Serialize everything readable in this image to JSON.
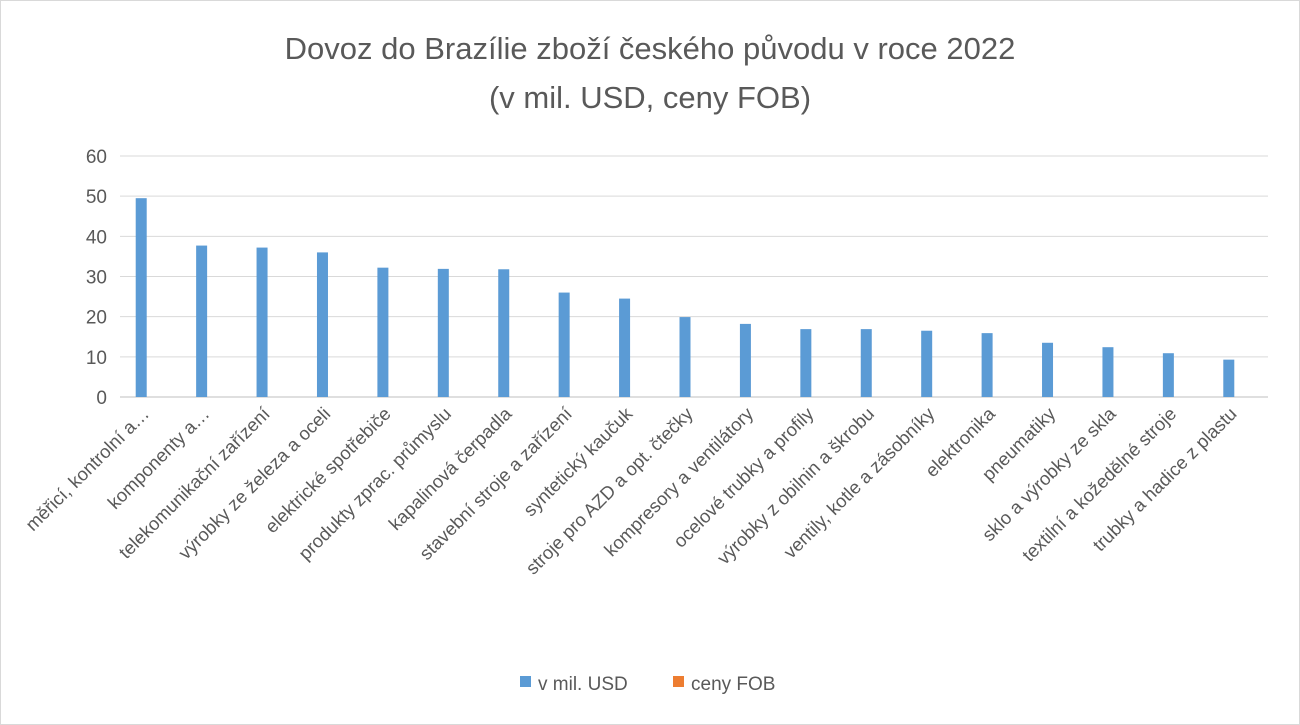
{
  "chart_data": {
    "type": "bar",
    "title": "Dovoz do Brazílie zboží českého původu v roce 2022",
    "subtitle": "(v mil. USD, ceny FOB)",
    "categories": [
      "měřicí, kontrolní a…",
      "komponenty a…",
      "telekomunikační zařízení",
      "výrobky ze železa a oceli",
      "elektrické spotřebiče",
      "produkty zprac. průmyslu",
      "kapalinová čerpadla",
      "stavební stroje a zařízení",
      "syntetický kaučuk",
      "stroje pro AZD a opt. čtečky",
      "kompresory a ventilátory",
      "ocelové trubky a profily",
      "výrobky z obilnin a škrobu",
      "ventily, kotle a zásobníky",
      "elektronika",
      "pneumatiky",
      "sklo a výrobky ze skla",
      "textilní a kožedělné stroje",
      "trubky a hadice z plastu"
    ],
    "series": [
      {
        "name": "v mil. USD",
        "color": "#5b9bd5",
        "values": [
          49.5,
          37.7,
          37.2,
          36.0,
          32.2,
          31.9,
          31.8,
          26.0,
          24.5,
          19.9,
          18.2,
          16.9,
          16.9,
          16.5,
          15.9,
          13.5,
          12.4,
          10.9,
          9.3
        ]
      },
      {
        "name": "ceny FOB",
        "color": "#ed7d31",
        "values": [
          0,
          0,
          0,
          0,
          0,
          0,
          0,
          0,
          0,
          0,
          0,
          0,
          0,
          0,
          0,
          0,
          0,
          0,
          0
        ]
      }
    ],
    "ylim": [
      0,
      60
    ],
    "yticks": [
      0,
      10,
      20,
      30,
      40,
      50,
      60
    ],
    "grid": true,
    "legend_position": "bottom"
  }
}
